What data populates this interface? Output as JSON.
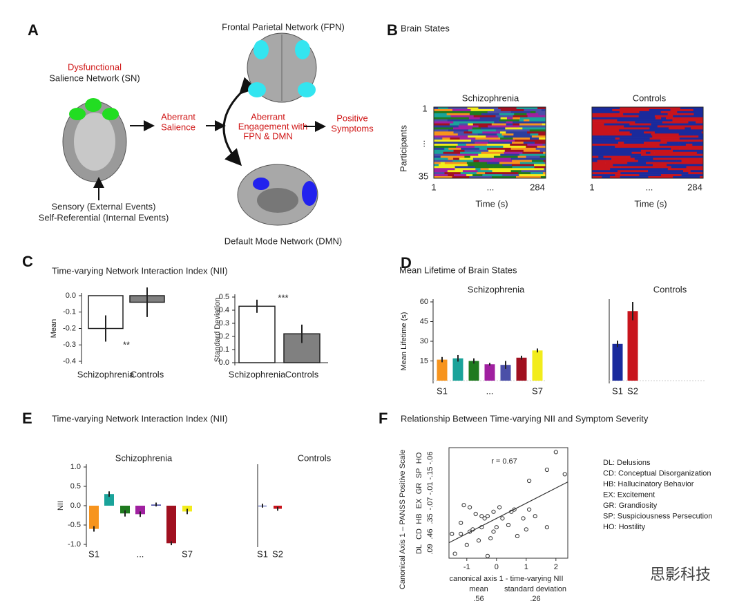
{
  "panel_labels": [
    "A",
    "B",
    "C",
    "D",
    "E",
    "F"
  ],
  "diagram": {
    "fpn": "Frontal Parietal Network (FPN)",
    "sn_status": "Dysfunctional",
    "sn": "Salience Network (SN)",
    "aberrant_salience": [
      "Aberrant",
      "Salience"
    ],
    "aberrant_engagement": [
      "Aberrant",
      "Engagement with",
      "FPN & DMN"
    ],
    "positive_symptoms": [
      "Positive",
      "Symptoms"
    ],
    "inputs": [
      "Sensory (External Events)",
      "Self-Referential (Internal Events)"
    ],
    "dmn": "Default Mode Network (DMN)"
  },
  "brain_states": {
    "title": "Brain States",
    "y_label": "Participants",
    "y_labels": [
      "1",
      "...",
      "35"
    ],
    "x_label": "Time (s)",
    "panels": [
      {
        "name": "Schizophrenia",
        "x_labels": [
          "1",
          "...",
          "284"
        ],
        "state_colors": [
          "#f7941d",
          "#1aa39a",
          "#1f7a1f",
          "#a020a0",
          "#4b4fa8",
          "#a01020",
          "#f2ec1c",
          "#2c3e9e"
        ]
      },
      {
        "name": "Controls",
        "x_labels": [
          "1",
          "...",
          "284"
        ],
        "state_colors": [
          "#1a2a9c",
          "#c8141c"
        ]
      }
    ]
  },
  "chart_data": [
    {
      "type": "bar",
      "title": "Time-varying Network Interaction Index (NII)",
      "y_label": "Mean",
      "categories": [
        "Schizophrenia",
        "Controls"
      ],
      "values": [
        -0.2,
        -0.04
      ],
      "errors": [
        0.08,
        0.09
      ],
      "colors": [
        "#ffffff",
        "#808080"
      ],
      "ylim": [
        -0.4,
        0
      ],
      "yticks": [
        {
          "value": 0,
          "label": "0.0"
        },
        -0.1,
        -0.2,
        -0.3,
        -0.4
      ],
      "annotation": "**"
    },
    {
      "type": "bar",
      "y_label": "Standard Deviation",
      "categories": [
        "Schizophrenia",
        "Controls"
      ],
      "values": [
        0.43,
        0.22
      ],
      "errors": [
        0.05,
        0.07
      ],
      "colors": [
        "#ffffff",
        "#808080"
      ],
      "ylim": [
        0,
        0.5
      ],
      "yticks": [
        {
          "value": 0,
          "label": "0.0"
        },
        0.1,
        0.2,
        0.3,
        0.4,
        0.5
      ],
      "annotation": "***"
    },
    {
      "type": "bar",
      "title": "Mean Lifetime of Brain States",
      "subtitle": "Schizophrenia",
      "y_label": "Mean Lifetime (s)",
      "categories": [
        "S1",
        null,
        null,
        "...",
        null,
        null,
        "S7"
      ],
      "values": [
        16,
        17,
        15,
        12.5,
        12,
        17.5,
        23
      ],
      "errors": [
        2,
        2.5,
        2,
        1,
        3,
        1.5,
        1.5
      ],
      "colors": [
        "#f7941d",
        "#1aa39a",
        "#1f7a1f",
        "#a020a0",
        "#4b4fa8",
        "#a01020",
        "#f2ec1c"
      ],
      "ylim": [
        0,
        60
      ],
      "yticks": [
        15,
        30,
        45,
        60
      ]
    },
    {
      "type": "bar",
      "subtitle": "Controls",
      "categories": [
        "S1",
        "S2"
      ],
      "values": [
        28,
        53
      ],
      "errors": [
        2.5,
        7
      ],
      "colors": [
        "#1a2a9c",
        "#c8141c"
      ],
      "ylim": [
        0,
        60
      ]
    },
    {
      "type": "bar",
      "title": "Time-varying Network Interaction Index (NII)",
      "subtitle": "Schizophrenia",
      "y_label": "NII",
      "categories": [
        "S1",
        null,
        null,
        "...",
        null,
        null,
        "S7"
      ],
      "values": [
        -0.6,
        0.3,
        -0.2,
        -0.22,
        0.03,
        -0.97,
        -0.15
      ],
      "errors": [
        0.07,
        0.07,
        0.08,
        0.07,
        0.05,
        0.05,
        0.07
      ],
      "colors": [
        "#f7941d",
        "#1aa39a",
        "#1f7a1f",
        "#a020a0",
        "#4b4fa8",
        "#a01020",
        "#f2ec1c"
      ],
      "ylim": [
        -1,
        1
      ],
      "yticks": [
        {
          "value": 1,
          "label": "1.0"
        },
        0.5,
        {
          "value": 0,
          "label": "0.0"
        },
        -0.5,
        {
          "value": -1,
          "label": "-1.0"
        }
      ]
    },
    {
      "type": "bar",
      "subtitle": "Controls",
      "categories": [
        "S1",
        "S2"
      ],
      "values": [
        0,
        -0.08
      ],
      "errors": [
        0.05,
        0.05
      ],
      "colors": [
        "#1a2a9c",
        "#c8141c"
      ],
      "ylim": [
        -1,
        1
      ]
    },
    {
      "type": "scatter",
      "title": "Relationship Between Time-varying NII and Symptom Severity",
      "y_label": "Canonical Axis 1 – PANSS Positive Scale",
      "y_sub_labels": [
        "DL",
        "CD",
        "HB",
        "EX",
        "GR",
        "SP",
        "HO"
      ],
      "y_sub_values": [
        ".09",
        ".46",
        ".35",
        "-.07",
        "-.01",
        "-.15",
        "-.06"
      ],
      "x_label": "canonical axis 1 - time-varying NII",
      "x_sub_labels": [
        "mean",
        "standard deviation"
      ],
      "x_sub_values": [
        ".56",
        ".26"
      ],
      "annotation": "r = 0.67",
      "x": [
        -1.5,
        -1.4,
        -1.2,
        -1.2,
        -1.1,
        -1.0,
        -0.9,
        -0.9,
        -0.8,
        -0.7,
        -0.6,
        -0.5,
        -0.5,
        -0.4,
        -0.3,
        -0.3,
        -0.2,
        -0.1,
        -0.1,
        0.0,
        0.1,
        0.2,
        0.4,
        0.5,
        0.6,
        0.7,
        0.9,
        1.0,
        1.1,
        1.1,
        1.3,
        1.7,
        1.7,
        2.0,
        2.3
      ],
      "values": [
        -0.7,
        -1.6,
        -0.7,
        -0.2,
        0.6,
        -1.2,
        -0.6,
        0.5,
        -0.5,
        0.2,
        -1.0,
        -0.4,
        0.1,
        0.0,
        -1.7,
        0.1,
        -0.9,
        -0.6,
        0.3,
        -0.4,
        0.5,
        0.0,
        -0.3,
        0.3,
        0.4,
        -0.8,
        0.0,
        -0.5,
        0.4,
        1.7,
        0.1,
        2.2,
        -0.4,
        3.0,
        2.0
      ],
      "fit_line": {
        "x": [
          -1.6,
          2.4
        ],
        "y": [
          -1.1,
          1.65
        ]
      },
      "xlim": [
        -1.6,
        2.4
      ],
      "ylim": [
        -1.8,
        3.2
      ],
      "xticks": [
        -1,
        0,
        1,
        2
      ],
      "color": "#333333",
      "legend": [
        "DL: Delusions",
        "CD: Conceptual Disorganization",
        "HB: Hallucinatory Behavior",
        "EX: Excitement",
        "GR: Grandiosity",
        "SP: Suspiciousness Persecution",
        "HO: Hostility"
      ]
    }
  ],
  "watermark": "思影科技"
}
